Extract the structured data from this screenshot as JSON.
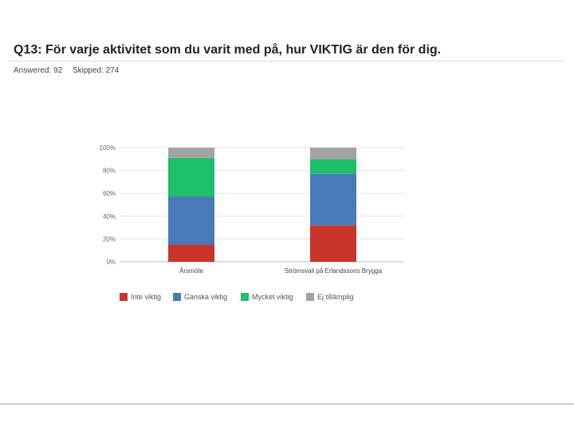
{
  "question": {
    "title": "Q13: För varje aktivitet som du varit med på, hur VIKTIG är den för dig.",
    "answered": "Answered: 92",
    "skipped": "Skipped: 274"
  },
  "chart_data": {
    "type": "bar",
    "stacked": true,
    "categories": [
      "Årsmöte",
      "Strömsvall på Erlandssons Brygga"
    ],
    "series": [
      {
        "name": "Inte viktig",
        "color": "#c9352b",
        "values": [
          15,
          32
        ]
      },
      {
        "name": "Ganska viktig",
        "color": "#4a7ab7",
        "values": [
          42,
          45
        ]
      },
      {
        "name": "Mycket viktig",
        "color": "#1dbf6a",
        "values": [
          34,
          13
        ]
      },
      {
        "name": "Ej tillämplig",
        "color": "#a3a3a3",
        "values": [
          9,
          10
        ]
      }
    ],
    "yticks": [
      "0%",
      "20%",
      "40%",
      "60%",
      "80%",
      "100%"
    ],
    "ylim": [
      0,
      100
    ],
    "grid": true,
    "legend_position": "bottom"
  }
}
